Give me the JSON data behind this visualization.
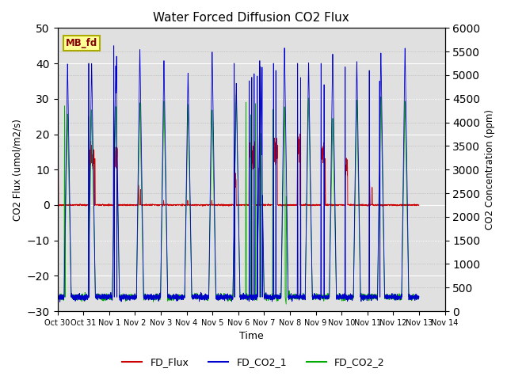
{
  "title": "Water Forced Diffusion CO2 Flux",
  "xlabel": "Time",
  "ylabel_left": "CO2 Flux (umol/m2/s)",
  "ylabel_right": "CO2 Concentration (ppm)",
  "ylim_left": [
    -30,
    50
  ],
  "ylim_right": [
    0,
    6000
  ],
  "yticks_left": [
    -30,
    -20,
    -10,
    0,
    10,
    20,
    30,
    40,
    50
  ],
  "yticks_right": [
    0,
    500,
    1000,
    1500,
    2000,
    2500,
    3000,
    3500,
    4000,
    4500,
    5000,
    5500,
    6000
  ],
  "bg_color": "#e0e0e0",
  "line_colors": {
    "FD_Flux": "#cc0000",
    "FD_CO2_1": "#0000cc",
    "FD_CO2_2": "#00aa00"
  },
  "label_box": "MB_fd",
  "label_box_facecolor": "#ffff99",
  "label_box_edgecolor": "#aaaa00",
  "label_box_textcolor": "#880000",
  "n_points": 3360
}
